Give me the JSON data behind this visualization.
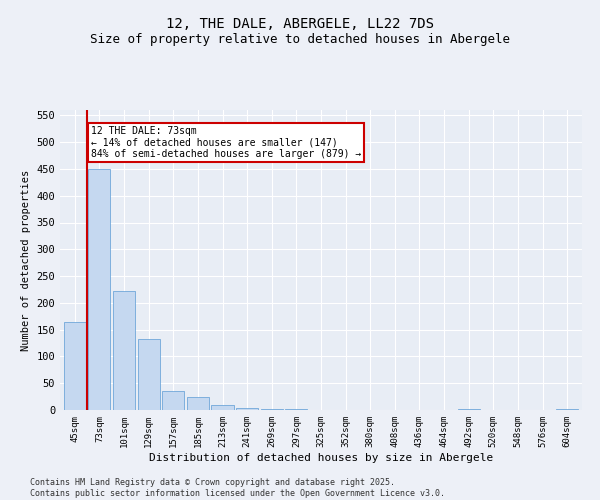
{
  "title": "12, THE DALE, ABERGELE, LL22 7DS",
  "subtitle": "Size of property relative to detached houses in Abergele",
  "xlabel": "Distribution of detached houses by size in Abergele",
  "ylabel": "Number of detached properties",
  "categories": [
    "45sqm",
    "73sqm",
    "101sqm",
    "129sqm",
    "157sqm",
    "185sqm",
    "213sqm",
    "241sqm",
    "269sqm",
    "297sqm",
    "325sqm",
    "352sqm",
    "380sqm",
    "408sqm",
    "436sqm",
    "464sqm",
    "492sqm",
    "520sqm",
    "548sqm",
    "576sqm",
    "604sqm"
  ],
  "values": [
    165,
    450,
    222,
    133,
    36,
    24,
    9,
    4,
    1,
    1,
    0,
    0,
    0,
    0,
    0,
    0,
    2,
    0,
    0,
    0,
    2
  ],
  "bar_color": "#c5d8f0",
  "bar_edge_color": "#5b9bd5",
  "vline_x": 1,
  "vline_color": "#cc0000",
  "annotation_text": "12 THE DALE: 73sqm\n← 14% of detached houses are smaller (147)\n84% of semi-detached houses are larger (879) →",
  "annotation_box_color": "#cc0000",
  "ylim": [
    0,
    560
  ],
  "yticks": [
    0,
    50,
    100,
    150,
    200,
    250,
    300,
    350,
    400,
    450,
    500,
    550
  ],
  "background_color": "#e8edf5",
  "fig_background_color": "#edf0f7",
  "footer_text": "Contains HM Land Registry data © Crown copyright and database right 2025.\nContains public sector information licensed under the Open Government Licence v3.0."
}
